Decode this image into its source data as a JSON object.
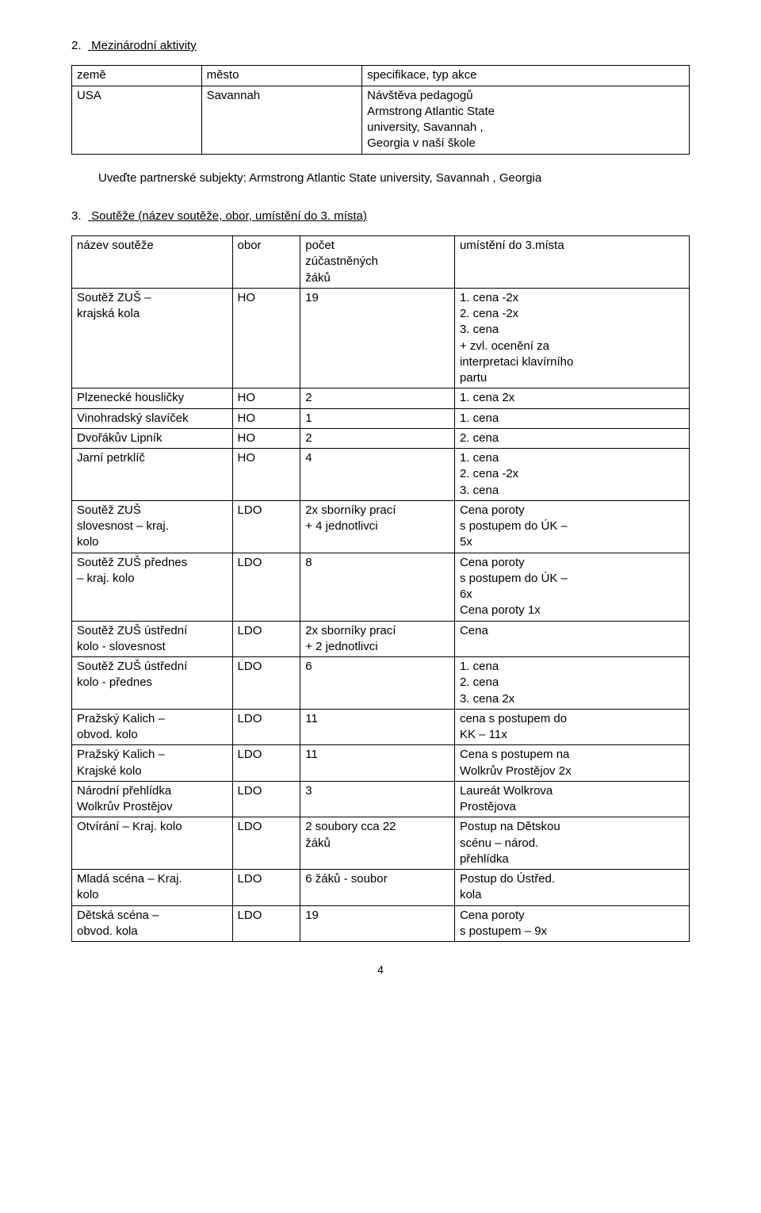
{
  "section2": {
    "num": "2.",
    "title": "Mezinárodní aktivity",
    "headers": [
      "země",
      "město",
      "specifikace, typ akce"
    ],
    "row": {
      "country": "USA",
      "city": "Savannah",
      "spec": "Návštěva pedagogů\nArmstrong Atlantic State\nuniversity, Savannah ,\nGeorgia v naší škole"
    },
    "partner": "Uveďte partnerské subjekty: Armstrong Atlantic State university, Savannah , Georgia"
  },
  "section3": {
    "num": "3.",
    "title": "Soutěže (název soutěže, obor, umístění do 3. místa)",
    "headers": [
      "název soutěže",
      "obor",
      "počet\nzúčastněných\nžáků",
      "umístění do 3.místa"
    ],
    "rows": [
      {
        "n": "Soutěž ZUŠ –\nkrajská kola",
        "o": "HO",
        "c": "19",
        "p": "      1.  cena -2x\n      2.  cena -2x\n      3.  cena\n+ zvl. ocenění za\ninterpretaci klavírního\npartu"
      },
      {
        "n": "Plzenecké housličky",
        "o": "HO",
        "c": "2",
        "p": "      1.  cena 2x"
      },
      {
        "n": "Vinohradský slavíček",
        "o": "HO",
        "c": "1",
        "p": "      1.  cena"
      },
      {
        "n": "Dvořákův Lipník",
        "o": "HO",
        "c": "2",
        "p": "      2.  cena"
      },
      {
        "n": "Jarní petrklíč",
        "o": "HO",
        "c": "4",
        "p": "      1.  cena\n      2.  cena -2x\n      3.  cena"
      },
      {
        "n": "Soutěž ZUŠ\nslovesnost – kraj.\nkolo",
        "o": "LDO",
        "c": "2x sborníky prací\n+ 4 jednotlivci",
        "p": "Cena poroty\ns postupem do ÚK –\n5x"
      },
      {
        "n": "Soutěž ZUŠ přednes\n– kraj. kolo",
        "o": "LDO",
        "c": "8",
        "p": "Cena poroty\ns postupem do ÚK –\n6x\nCena poroty 1x"
      },
      {
        "n": "Soutěž ZUŠ ústřední\nkolo  - slovesnost",
        "o": "LDO",
        "c": "2x sborníky prací\n+ 2 jednotlivci",
        "p": "Cena"
      },
      {
        "n": "Soutěž ZUŠ ústřední\nkolo - přednes",
        "o": "LDO",
        "c": "6",
        "p": "      1.  cena\n      2.  cena\n      3.  cena 2x"
      },
      {
        "n": "Pražský Kalich –\nobvod. kolo",
        "o": "LDO",
        "c": "11",
        "p": "cena s postupem do\nKK – 11x"
      },
      {
        "n": "Pražský Kalich –\nKrajské kolo",
        "o": "LDO",
        "c": "11",
        "p": "Cena s postupem na\nWolkrův Prostějov 2x"
      },
      {
        "n": "Národní přehlídka\nWolkrův Prostějov",
        "o": "LDO",
        "c": "3",
        "p": "Laureát Wolkrova\nProstějova"
      },
      {
        "n": "Otvírání – Kraj. kolo",
        "o": "LDO",
        "c": "2 soubory cca 22\nžáků",
        "p": "Postup na Dětskou\nscénu – národ.\npřehlídka"
      },
      {
        "n": "Mladá scéna – Kraj.\nkolo",
        "o": "LDO",
        "c": "6 žáků - soubor",
        "p": "Postup do Ústřed.\nkola"
      },
      {
        "n": "Dětská scéna –\nobvod. kola",
        "o": "LDO",
        "c": "19",
        "p": "Cena poroty\ns postupem – 9x"
      }
    ]
  },
  "pagenum": "4"
}
